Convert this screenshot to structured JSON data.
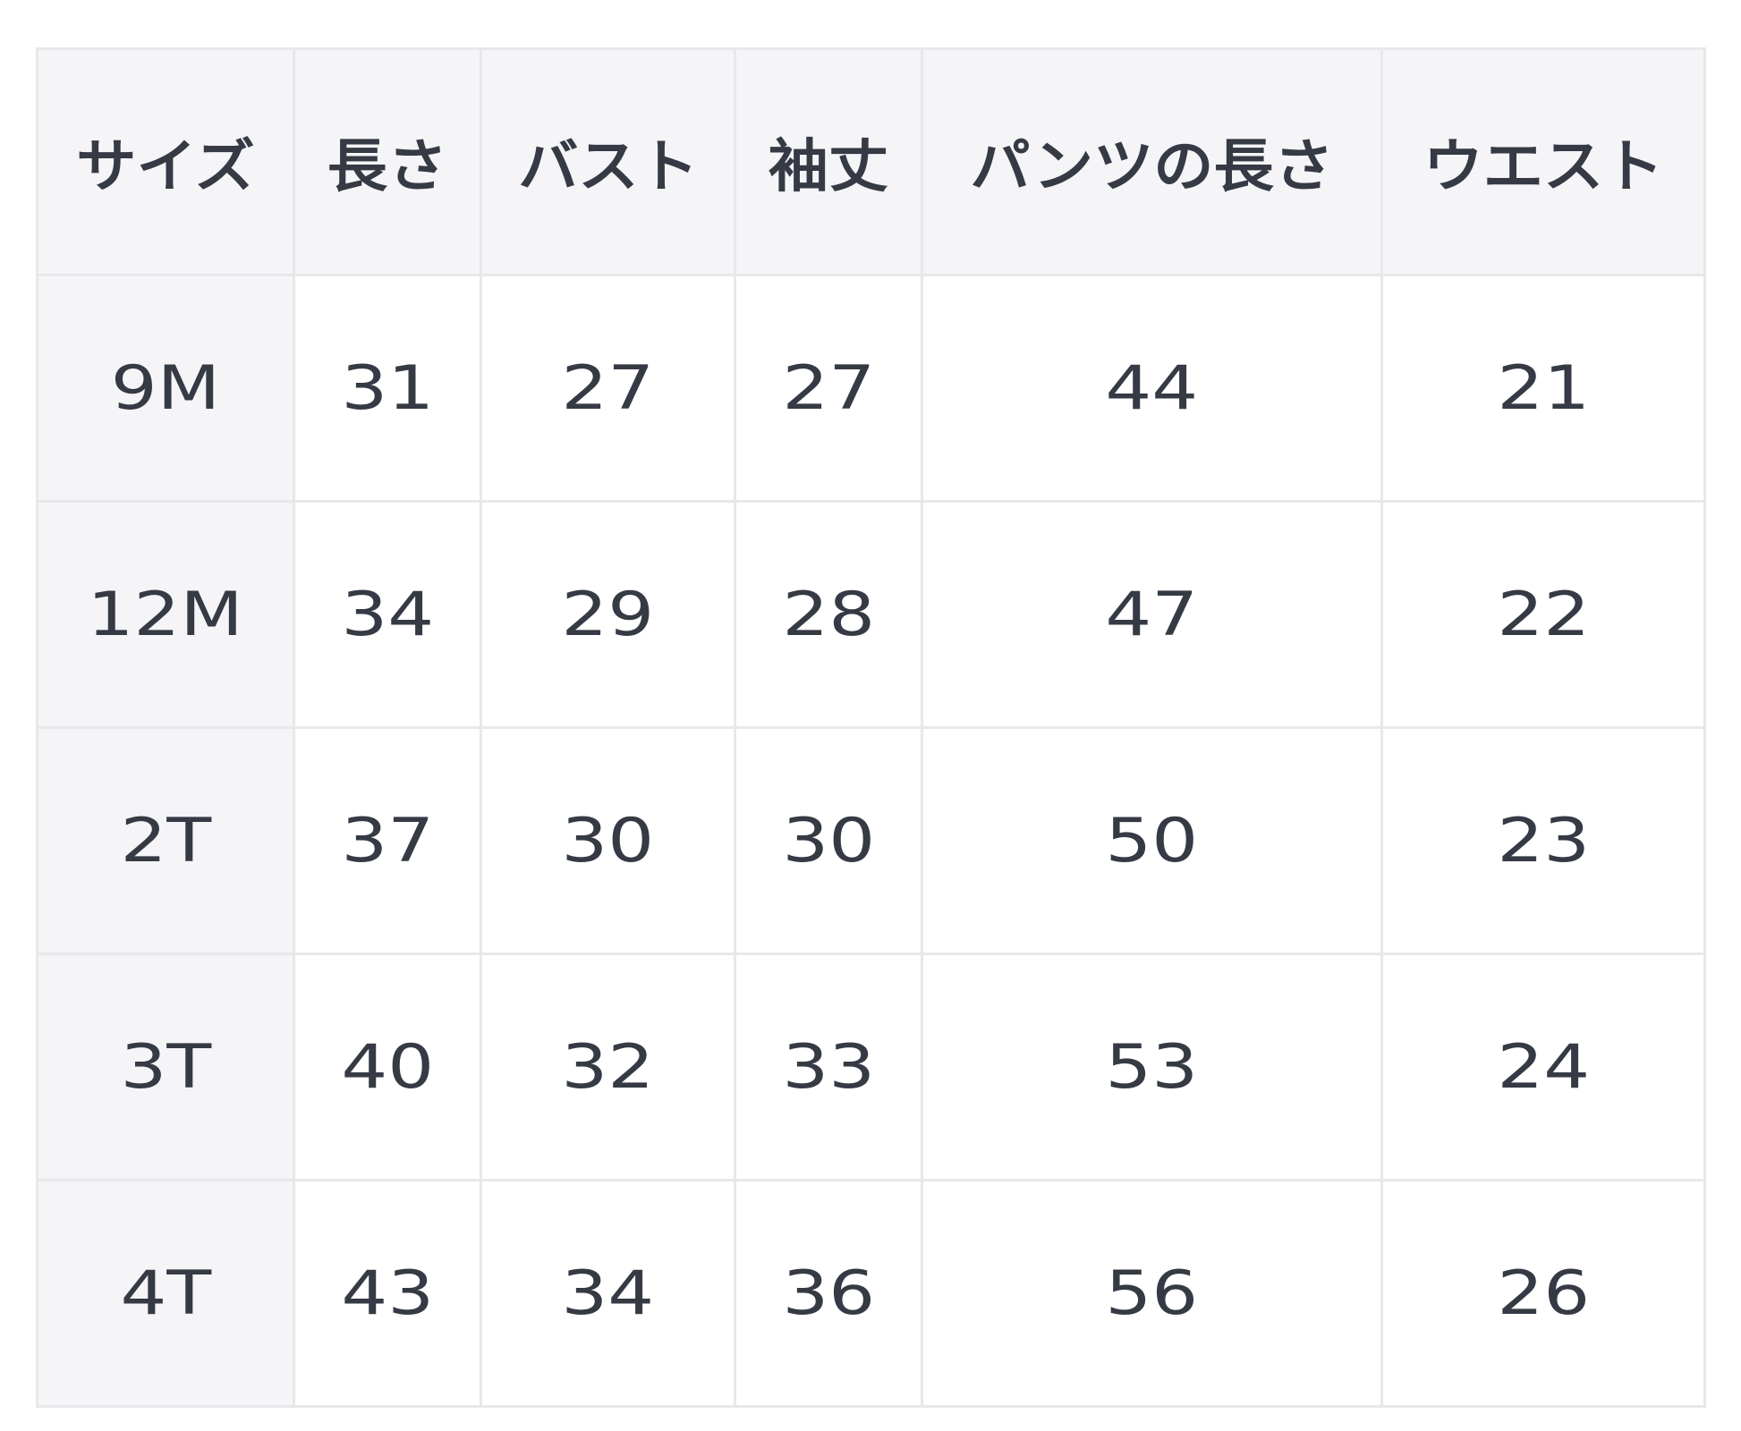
{
  "size_table": {
    "headers": [
      "サイズ",
      "長さ",
      "バスト",
      "袖丈",
      "パンツの長さ",
      "ウエスト"
    ],
    "rows": [
      [
        "9M",
        "31",
        "27",
        "27",
        "44",
        "21"
      ],
      [
        "12M",
        "34",
        "29",
        "28",
        "47",
        "22"
      ],
      [
        "2T",
        "37",
        "30",
        "30",
        "50",
        "23"
      ],
      [
        "3T",
        "40",
        "32",
        "33",
        "53",
        "24"
      ],
      [
        "4T",
        "43",
        "34",
        "36",
        "56",
        "26"
      ]
    ]
  },
  "colors": {
    "header_bg": "#f5f5f7",
    "border": "#e8e8ea",
    "text": "#353a45"
  }
}
